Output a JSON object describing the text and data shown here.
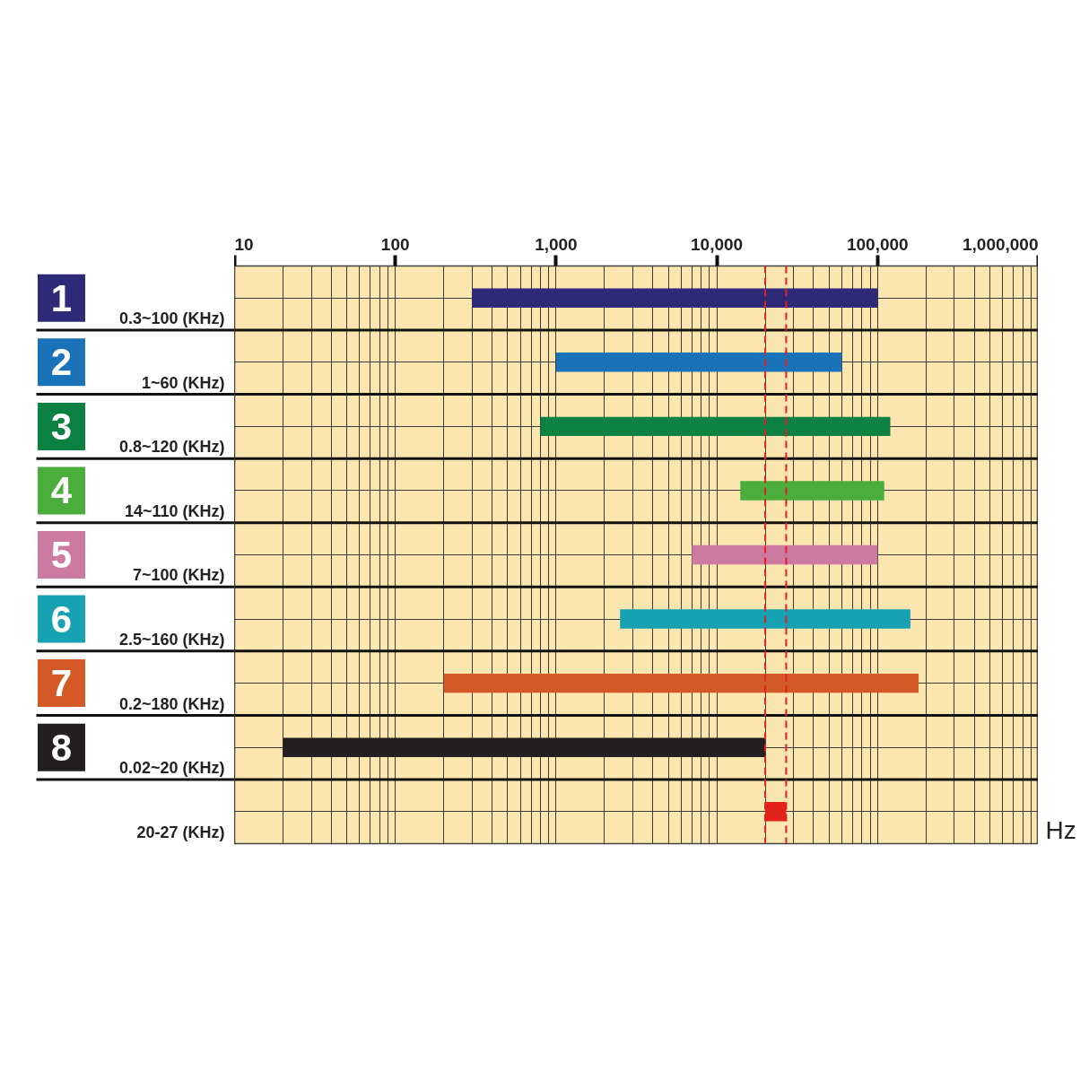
{
  "chart_data": {
    "type": "bar",
    "orientation": "horizontal",
    "categories": [
      "1",
      "2",
      "3",
      "4",
      "5",
      "6",
      "7",
      "8",
      null
    ],
    "base": [
      300,
      1000,
      800,
      14000,
      7000,
      2500,
      200,
      20,
      20000
    ],
    "values": [
      99700,
      59000,
      119200,
      96000,
      93000,
      157500,
      179800,
      19980,
      7000
    ],
    "colors": [
      "#2e2a78",
      "#1a72b8",
      "#0a8043",
      "#4bae3c",
      "#cc7aa0",
      "#17a2b4",
      "#d35a27",
      "#231f20",
      "#e2231a"
    ],
    "annotations": [
      "0.3~100 (KHz)",
      "1~60 (KHz)",
      "0.8~120 (KHz)",
      "14~110 (KHz)",
      "7~100 (KHz)",
      "2.5~160 (KHz)",
      "0.2~180 (KHz)",
      "0.02~20 (KHz)",
      "20-27 (KHz)"
    ],
    "xlabel": "Hz",
    "log": "x",
    "xlim": [
      10,
      1000000
    ],
    "xticks": [
      10,
      100,
      {
        "value": 1000,
        "label": "1,000"
      },
      {
        "value": 10000,
        "label": "10,000"
      },
      {
        "value": 100000,
        "label": "100,000"
      },
      {
        "value": 1000000,
        "label": "1,000,000"
      }
    ],
    "ref_lines": [
      {
        "axis": "x",
        "value": 20000,
        "color": "#e31e24",
        "line_style": "dashed"
      },
      {
        "axis": "x",
        "value": 27000,
        "color": "#e31e24",
        "line_style": "dashed"
      }
    ],
    "grid": true
  }
}
